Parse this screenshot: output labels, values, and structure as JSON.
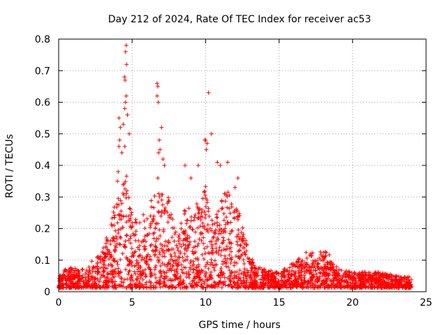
{
  "chart_data": {
    "type": "scatter",
    "title": "Day 212 of 2024, Rate Of TEC Index for receiver ac53",
    "xlabel": "GPS time / hours",
    "ylabel": "ROTI / TECUs",
    "xlim": [
      0,
      25
    ],
    "ylim": [
      0,
      0.8
    ],
    "xticks": [
      0,
      5,
      10,
      15,
      20,
      25
    ],
    "yticks": [
      0,
      0.1,
      0.2,
      0.3,
      0.4,
      0.5,
      0.6,
      0.7,
      0.8
    ],
    "xtick_labels": [
      "0",
      "5",
      "10",
      "15",
      "20",
      "25"
    ],
    "ytick_labels": [
      "0",
      "0.1",
      "0.2",
      "0.3",
      "0.4",
      "0.5",
      "0.6",
      "0.7",
      "0.8"
    ],
    "grid": true,
    "marker": "+",
    "color": "#ff0000",
    "series": [
      {
        "name": "ROTI",
        "envelope": [
          [
            0,
            0.04
          ],
          [
            0.5,
            0.06
          ],
          [
            1,
            0.07
          ],
          [
            1.5,
            0.06
          ],
          [
            2,
            0.08
          ],
          [
            2.5,
            0.09
          ],
          [
            3,
            0.12
          ],
          [
            3.5,
            0.22
          ],
          [
            4,
            0.3
          ],
          [
            4.3,
            0.32
          ],
          [
            4.6,
            0.36
          ],
          [
            5,
            0.25
          ],
          [
            5.5,
            0.22
          ],
          [
            6,
            0.25
          ],
          [
            6.5,
            0.3
          ],
          [
            6.9,
            0.38
          ],
          [
            7.3,
            0.33
          ],
          [
            7.8,
            0.22
          ],
          [
            8.3,
            0.2
          ],
          [
            8.7,
            0.28
          ],
          [
            9.2,
            0.24
          ],
          [
            9.6,
            0.3
          ],
          [
            10,
            0.33
          ],
          [
            10.5,
            0.22
          ],
          [
            11,
            0.28
          ],
          [
            11.5,
            0.32
          ],
          [
            12,
            0.3
          ],
          [
            12.5,
            0.2
          ],
          [
            13,
            0.1
          ],
          [
            13.5,
            0.07
          ],
          [
            14,
            0.06
          ],
          [
            15,
            0.05
          ],
          [
            16,
            0.08
          ],
          [
            16.5,
            0.1
          ],
          [
            17,
            0.12
          ],
          [
            17.5,
            0.11
          ],
          [
            18,
            0.13
          ],
          [
            18.5,
            0.1
          ],
          [
            19,
            0.06
          ],
          [
            20,
            0.05
          ],
          [
            21,
            0.05
          ],
          [
            22,
            0.05
          ],
          [
            23,
            0.04
          ],
          [
            24,
            0.035
          ]
        ],
        "outliers": [
          [
            4.6,
            0.78
          ],
          [
            4.55,
            0.76
          ],
          [
            4.62,
            0.72
          ],
          [
            4.48,
            0.68
          ],
          [
            4.52,
            0.67
          ],
          [
            4.6,
            0.62
          ],
          [
            4.55,
            0.6
          ],
          [
            4.5,
            0.58
          ],
          [
            4.68,
            0.56
          ],
          [
            4.4,
            0.53
          ],
          [
            4.8,
            0.5
          ],
          [
            4.2,
            0.52
          ],
          [
            4.1,
            0.55
          ],
          [
            4.15,
            0.48
          ],
          [
            4.5,
            0.46
          ],
          [
            4.3,
            0.44
          ],
          [
            4.1,
            0.46
          ],
          [
            4.05,
            0.38
          ],
          [
            4.0,
            0.35
          ],
          [
            6.7,
            0.66
          ],
          [
            6.75,
            0.65
          ],
          [
            6.7,
            0.62
          ],
          [
            6.78,
            0.6
          ],
          [
            7.0,
            0.52
          ],
          [
            6.85,
            0.48
          ],
          [
            6.9,
            0.45
          ],
          [
            6.8,
            0.44
          ],
          [
            7.1,
            0.42
          ],
          [
            7.2,
            0.4
          ],
          [
            10.2,
            0.63
          ],
          [
            9.95,
            0.48
          ],
          [
            10.0,
            0.48
          ],
          [
            10.1,
            0.47
          ],
          [
            10.4,
            0.5
          ],
          [
            10.05,
            0.45
          ],
          [
            9.5,
            0.4
          ],
          [
            10.8,
            0.41
          ],
          [
            11.0,
            0.4
          ],
          [
            11.5,
            0.41
          ],
          [
            12.0,
            0.33
          ],
          [
            12.2,
            0.36
          ],
          [
            8.6,
            0.4
          ],
          [
            9.0,
            0.36
          ]
        ]
      }
    ]
  }
}
